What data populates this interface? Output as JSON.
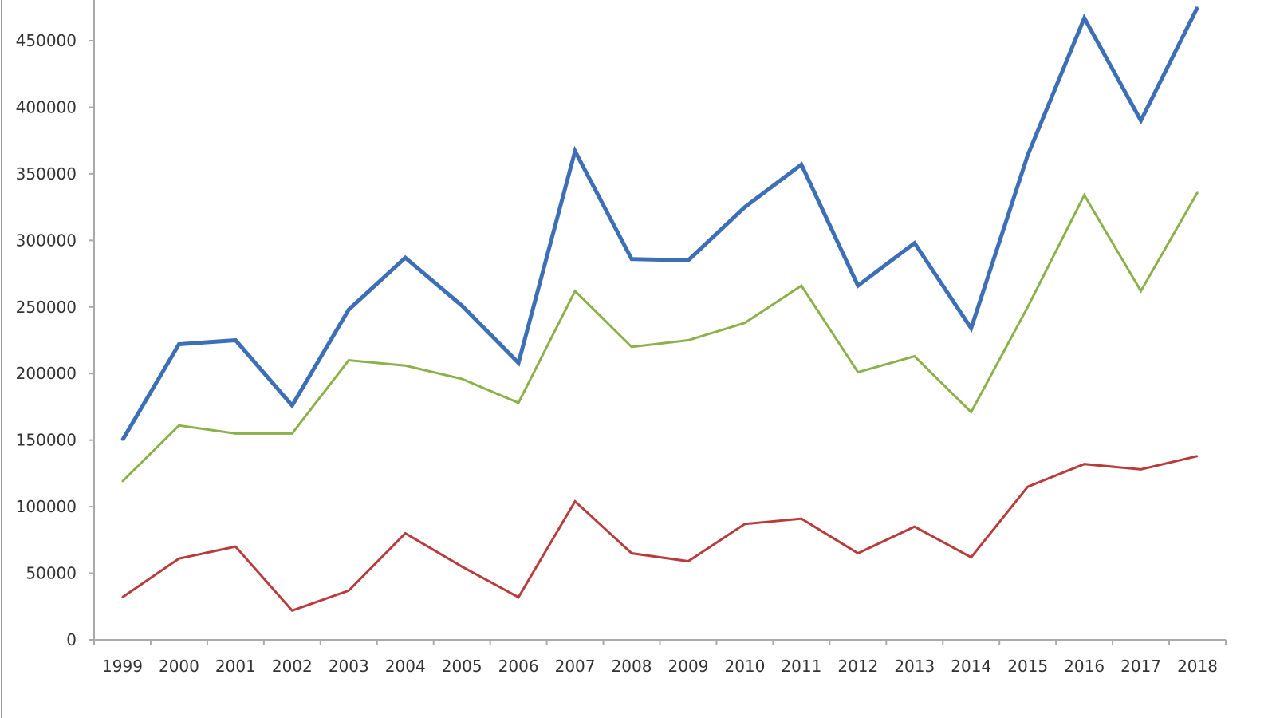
{
  "chart_data": {
    "type": "line",
    "title": "",
    "xlabel": "",
    "ylabel": "",
    "categories": [
      "1999",
      "2000",
      "2001",
      "2002",
      "2003",
      "2004",
      "2005",
      "2006",
      "2007",
      "2008",
      "2009",
      "2010",
      "2011",
      "2012",
      "2013",
      "2014",
      "2015",
      "2016",
      "2017",
      "2018"
    ],
    "ylim": [
      0,
      500000
    ],
    "yticks": [
      0,
      50000,
      100000,
      150000,
      200000,
      250000,
      300000,
      350000,
      400000,
      450000
    ],
    "grid": false,
    "series": [
      {
        "color": "#3c6fb6",
        "values": [
          150000,
          222000,
          225000,
          176000,
          248000,
          287000,
          251000,
          208000,
          367000,
          286000,
          285000,
          325000,
          357000,
          266000,
          298000,
          234000,
          364000,
          467000,
          390000,
          475000
        ]
      },
      {
        "color": "#8cb04a",
        "values": [
          119000,
          161000,
          155000,
          155000,
          210000,
          206000,
          196000,
          178000,
          262000,
          220000,
          225000,
          238000,
          266000,
          201000,
          213000,
          171000,
          250000,
          334000,
          262000,
          336000
        ]
      },
      {
        "color": "#b83c3c",
        "values": [
          32000,
          61000,
          70000,
          22000,
          37000,
          80000,
          55000,
          32000,
          104000,
          65000,
          59000,
          87000,
          91000,
          65000,
          85000,
          62000,
          115000,
          132000,
          128000,
          138000
        ]
      }
    ]
  }
}
